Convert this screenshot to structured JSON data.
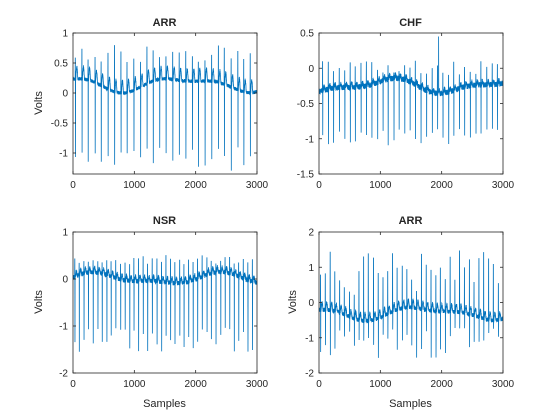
{
  "chart_data": [
    {
      "type": "line",
      "title": "ARR",
      "xlabel": "",
      "ylabel": "Volts",
      "xlim": [
        0,
        3000
      ],
      "ylim": [
        -1.35,
        1
      ],
      "xticks": [
        0,
        1000,
        2000,
        3000
      ],
      "yticks": [
        1,
        0.5,
        0,
        -0.5,
        -1
      ],
      "ytick_labels": [
        "1",
        "0.5",
        "0",
        "-0.5",
        "-1"
      ],
      "color": "#0072bd",
      "grid": false,
      "series": [
        {
          "signal": {
            "n": 3000,
            "beats": 28,
            "first_beat": 40,
            "baseline": 0.15,
            "r_peak": 0.6,
            "r_peak_range": [
              0.5,
              0.8
            ],
            "s_trough": -1.1,
            "s_trough_range": [
              -1.3,
              -0.9
            ],
            "wander": 0.1,
            "t_wave": 0.2,
            "noise": 0.03
          }
        }
      ]
    },
    {
      "type": "line",
      "title": "CHF",
      "xlabel": "",
      "ylabel": "",
      "xlim": [
        0,
        3000
      ],
      "ylim": [
        -1.5,
        0.5
      ],
      "xticks": [
        0,
        1000,
        2000,
        3000
      ],
      "yticks": [
        0.5,
        0,
        -0.5,
        -1,
        -1.5
      ],
      "ytick_labels": [
        "0.5",
        "0",
        "-0.5",
        "-1",
        "-1.5"
      ],
      "color": "#0072bd",
      "grid": false,
      "series": [
        {
          "signal": {
            "n": 3000,
            "beats": 33,
            "first_beat": 60,
            "baseline": -0.25,
            "r_peak": 0.0,
            "r_peak_range": [
              -0.1,
              0.1
            ],
            "s_trough": -1.0,
            "s_trough_range": [
              -1.1,
              -0.85
            ],
            "wander": 0.08,
            "t_wave": 0.05,
            "noise": 0.04,
            "spike_at": 1950,
            "spike_value": 0.45
          }
        }
      ]
    },
    {
      "type": "line",
      "title": "NSR",
      "xlabel": "Samples",
      "ylabel": "Volts",
      "xlim": [
        0,
        3000
      ],
      "ylim": [
        -2,
        1
      ],
      "xticks": [
        0,
        1000,
        2000,
        3000
      ],
      "yticks": [
        1,
        0,
        -1,
        -2
      ],
      "ytick_labels": [
        "1",
        "0",
        "-1",
        "-2"
      ],
      "color": "#0072bd",
      "grid": false,
      "series": [
        {
          "signal": {
            "n": 3000,
            "beats": 40,
            "first_beat": 30,
            "baseline": 0.0,
            "r_peak": 0.35,
            "r_peak_range": [
              0.3,
              0.5
            ],
            "s_trough": -1.3,
            "s_trough_range": [
              -1.55,
              -1.0
            ],
            "wander": 0.1,
            "t_wave": 0.1,
            "noise": 0.05
          }
        }
      ]
    },
    {
      "type": "line",
      "title": "ARR",
      "xlabel": "Samples",
      "ylabel": "Volts",
      "xlim": [
        0,
        3000
      ],
      "ylim": [
        -2,
        2
      ],
      "xticks": [
        0,
        1000,
        2000,
        3000
      ],
      "yticks": [
        2,
        1,
        0,
        -1,
        -2
      ],
      "ytick_labels": [
        "2",
        "1",
        "0",
        "-1",
        "-2"
      ],
      "color": "#0072bd",
      "grid": false,
      "series": [
        {
          "signal": {
            "n": 3000,
            "beats": 38,
            "first_beat": 25,
            "baseline": -0.3,
            "r_peak": 0.5,
            "r_peak_range": [
              0.2,
              1.5
            ],
            "s_trough": -0.9,
            "s_trough_range": [
              -1.6,
              -0.7
            ],
            "wander": 0.15,
            "t_wave": 0.2,
            "noise": 0.06
          }
        }
      ]
    }
  ]
}
